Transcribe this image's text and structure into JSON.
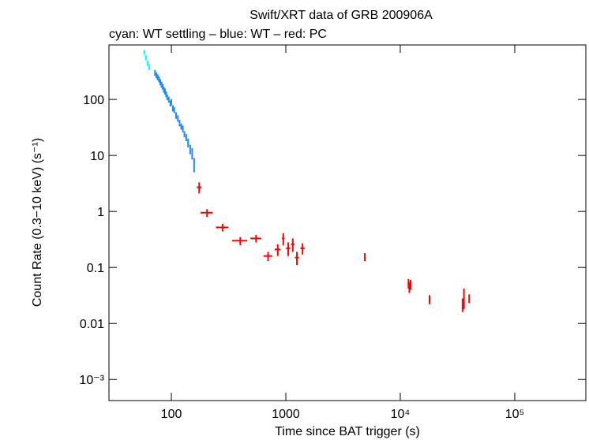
{
  "chart_data": {
    "type": "scatter",
    "title": "Swift/XRT data of GRB 200906A",
    "subtitle": "cyan: WT settling – blue: WT – red: PC",
    "x_label": "Time since BAT trigger (s)",
    "y_label": "Count Rate (0.3−10 keV) (s⁻¹)",
    "log_x": true,
    "log_y": true,
    "xlim": [
      28.5,
      418000
    ],
    "ylim": [
      0.00042,
      940
    ],
    "xticks": [
      100,
      1000,
      {
        "value": 10000,
        "label": "10⁴"
      },
      {
        "value": 100000,
        "label": "10⁵"
      }
    ],
    "yticks": [
      {
        "value": 0.001,
        "label": "10⁻³"
      },
      0.01,
      0.1,
      1,
      10,
      100
    ],
    "series": [
      {
        "name": "WT settling",
        "color": "#00ffff",
        "x": [
          58,
          60,
          62,
          64
        ],
        "values": [
          700,
          560,
          450,
          380
        ],
        "xerr": [
          1,
          1,
          1,
          1
        ],
        "yerr": [
          70,
          60,
          50,
          45
        ]
      },
      {
        "name": "WT",
        "color": "#1e88ff",
        "x": [
          72,
          74,
          76,
          78,
          80,
          82,
          84,
          86,
          88,
          90,
          92,
          95,
          98,
          100,
          103,
          106,
          110,
          114,
          118,
          122,
          126,
          130,
          135,
          140,
          146,
          152,
          158
        ],
        "values": [
          300,
          270,
          250,
          230,
          205,
          185,
          170,
          150,
          140,
          125,
          110,
          100,
          85,
          90,
          70,
          65,
          52,
          46,
          38,
          33,
          30,
          24,
          21,
          17,
          13,
          11,
          7
        ],
        "xerr": [
          1,
          1,
          1,
          1,
          1,
          1,
          1,
          1,
          1,
          1,
          1,
          1,
          1,
          1,
          1,
          1,
          1,
          1,
          1,
          1,
          1,
          1,
          1,
          1,
          1,
          1,
          1
        ],
        "yerr": [
          36,
          32,
          30,
          28,
          25,
          22,
          20,
          18,
          17,
          15,
          13,
          12,
          10,
          11,
          9,
          8,
          7,
          6,
          5,
          4,
          4,
          3,
          3,
          3,
          2.5,
          2.5,
          2
        ]
      },
      {
        "name": "PC",
        "color": "#ff0000",
        "x": [
          175,
          205,
          280,
          400,
          550,
          700,
          850,
          950,
          1050,
          1150,
          1250,
          1400,
          4900,
          11800,
          12000,
          12300,
          18000,
          35000,
          36000,
          40000
        ],
        "values": [
          2.7,
          0.95,
          0.52,
          0.3,
          0.33,
          0.16,
          0.21,
          0.33,
          0.22,
          0.26,
          0.15,
          0.22,
          0.155,
          0.052,
          0.045,
          0.05,
          0.027,
          0.022,
          0.03,
          0.028
        ],
        "xerr": [
          8,
          25,
          35,
          60,
          60,
          60,
          50,
          25,
          45,
          40,
          50,
          60,
          60,
          150,
          150,
          150,
          250,
          400,
          300,
          400
        ],
        "yerr": [
          0.6,
          0.15,
          0.08,
          0.05,
          0.05,
          0.03,
          0.05,
          0.08,
          0.06,
          0.07,
          0.04,
          0.05,
          0.025,
          0.01,
          0.01,
          0.01,
          0.005,
          0.006,
          0.012,
          0.005
        ]
      }
    ]
  }
}
